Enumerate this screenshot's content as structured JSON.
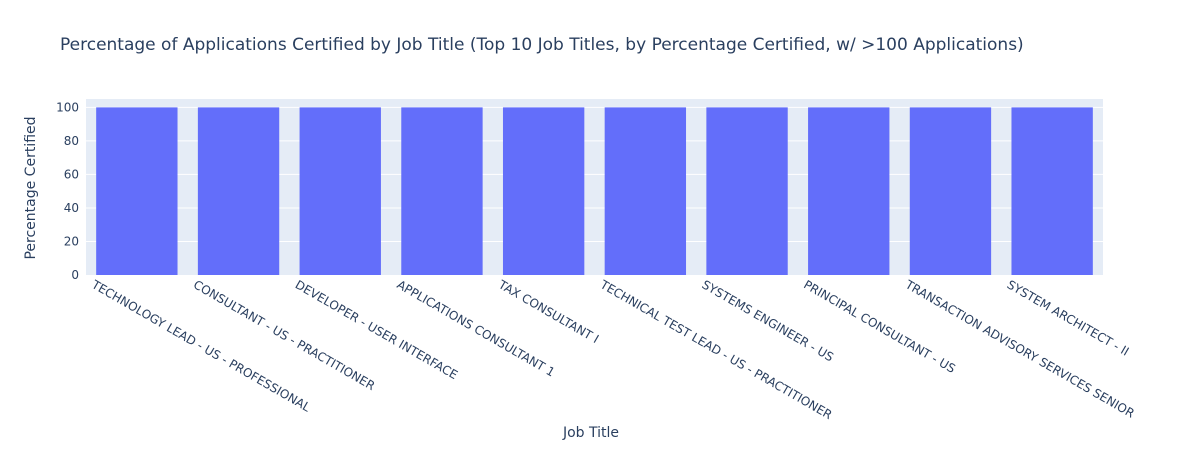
{
  "chart_data": {
    "type": "bar",
    "title": "Percentage of Applications Certified by Job Title (Top 10 Job Titles, by Percentage Certified, w/ >100 Applications)",
    "xlabel": "Job Title",
    "ylabel": "Percentage Certified",
    "ylim": [
      0,
      105
    ],
    "yticks": [
      0,
      20,
      40,
      60,
      80,
      100
    ],
    "grid": true,
    "legend": "none",
    "bar_color": "#636efa",
    "plot_bg": "#e5ecf6",
    "categories": [
      "TECHNOLOGY LEAD - US - PROFESSIONAL",
      "CONSULTANT - US - PRACTITIONER",
      "DEVELOPER - USER INTERFACE",
      "APPLICATIONS CONSULTANT 1",
      "TAX CONSULTANT I",
      "TECHNICAL TEST LEAD - US - PRACTITIONER",
      "SYSTEMS ENGINEER - US",
      "PRINCIPAL CONSULTANT - US",
      "TRANSACTION ADVISORY SERVICES SENIOR",
      "SYSTEM ARCHITECT - II"
    ],
    "values": [
      100,
      100,
      100,
      100,
      100,
      100,
      100,
      100,
      100,
      100
    ]
  }
}
